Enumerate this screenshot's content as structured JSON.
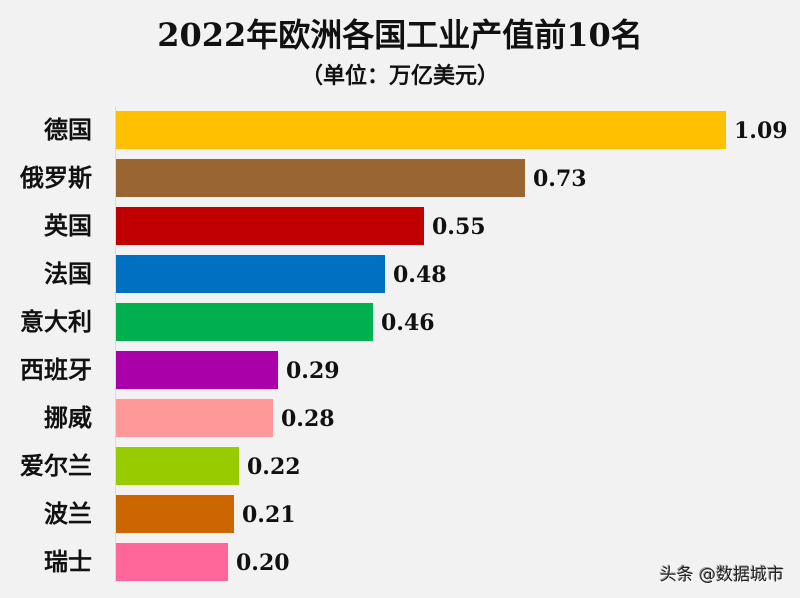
{
  "chart_data": {
    "type": "bar",
    "orientation": "horizontal",
    "title": "2022年欧洲各国工业产值前10名",
    "subtitle": "（单位：万亿美元）",
    "xlabel": "",
    "ylabel": "",
    "categories": [
      "德国",
      "俄罗斯",
      "英国",
      "法国",
      "意大利",
      "西班牙",
      "挪威",
      "爱尔兰",
      "波兰",
      "瑞士"
    ],
    "values": [
      1.09,
      0.73,
      0.55,
      0.48,
      0.46,
      0.29,
      0.28,
      0.22,
      0.21,
      0.2
    ],
    "value_labels": [
      "1.09",
      "0.73",
      "0.55",
      "0.48",
      "0.46",
      "0.29",
      "0.28",
      "0.22",
      "0.21",
      "0.20"
    ],
    "colors": [
      "#ffc000",
      "#996633",
      "#c00000",
      "#0070c0",
      "#00b050",
      "#aa00aa",
      "#ff9999",
      "#99cc00",
      "#cc6600",
      "#ff6699"
    ],
    "xlim": [
      0,
      1.09
    ],
    "grid": false,
    "legend": "none"
  },
  "watermark": "头条 @数据城市"
}
